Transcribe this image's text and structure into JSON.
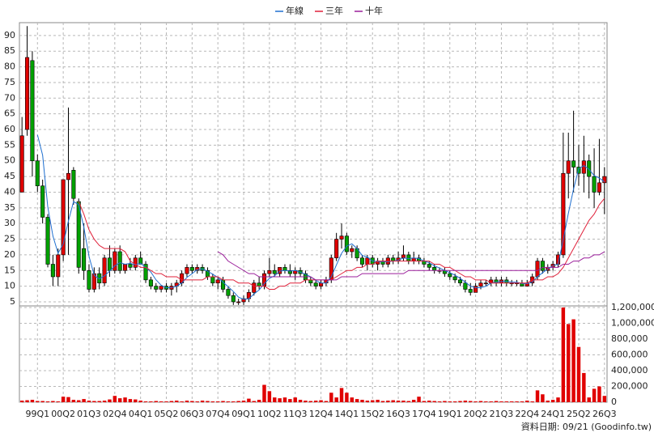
{
  "chart_data": {
    "type": "candlestick",
    "source": "資料日期: 09/21 (Goodinfo.tw)",
    "categories": [
      null,
      null,
      null,
      "99Q1",
      null,
      null,
      null,
      null,
      "00Q2",
      null,
      null,
      null,
      null,
      "01Q3",
      null,
      null,
      null,
      null,
      "02Q4",
      null,
      null,
      null,
      null,
      "04Q1",
      null,
      null,
      null,
      null,
      "05Q2",
      null,
      null,
      null,
      null,
      "06Q3",
      null,
      null,
      null,
      null,
      "07Q4",
      null,
      null,
      null,
      null,
      "09Q1",
      null,
      null,
      null,
      null,
      "10Q2",
      null,
      null,
      null,
      null,
      "11Q3",
      null,
      null,
      null,
      null,
      "12Q4",
      null,
      null,
      null,
      null,
      "14Q1",
      null,
      null,
      null,
      null,
      "15Q2",
      null,
      null,
      null,
      null,
      "16Q3",
      null,
      null,
      null,
      null,
      "17Q4",
      null,
      null,
      null,
      null,
      "19Q1",
      null,
      null,
      null,
      null,
      "20Q2",
      null,
      null,
      null,
      null,
      "21Q3",
      null,
      null,
      null,
      null,
      "22Q4",
      null,
      null,
      null,
      null,
      "24Q1",
      null,
      null,
      null,
      null,
      "25Q2",
      null,
      null,
      null,
      null,
      "26Q3"
    ],
    "ohlc": [
      [
        40,
        64,
        40,
        58
      ],
      [
        60,
        93,
        58,
        83
      ],
      [
        82,
        85,
        45,
        50
      ],
      [
        50,
        52,
        40,
        42
      ],
      [
        42,
        44,
        30,
        32
      ],
      [
        32,
        33,
        16,
        17
      ],
      [
        17,
        20,
        10,
        13
      ],
      [
        13,
        22,
        10,
        20
      ],
      [
        20,
        44,
        18,
        44
      ],
      [
        44,
        67,
        20,
        46
      ],
      [
        47,
        48,
        36,
        38
      ],
      [
        37,
        38,
        14,
        16
      ],
      [
        22,
        30,
        12,
        15
      ],
      [
        15,
        17,
        8,
        9
      ],
      [
        9,
        16,
        8,
        14
      ],
      [
        14,
        16,
        9,
        11
      ],
      [
        11,
        20,
        10,
        19
      ],
      [
        19,
        23,
        13,
        15
      ],
      [
        15,
        22,
        14,
        21
      ],
      [
        21,
        23,
        14,
        15
      ],
      [
        15,
        17,
        14,
        17
      ],
      [
        17,
        19,
        15,
        16
      ],
      [
        16,
        20,
        15,
        19
      ],
      [
        19,
        21,
        17,
        17
      ],
      [
        17,
        18,
        11,
        12
      ],
      [
        12,
        13,
        9,
        10
      ],
      [
        10,
        11,
        8,
        9
      ],
      [
        9,
        10,
        8,
        10
      ],
      [
        10,
        11,
        8,
        9
      ],
      [
        9,
        11,
        7,
        10
      ],
      [
        10,
        12,
        8,
        11
      ],
      [
        11,
        15,
        10,
        14
      ],
      [
        14,
        17,
        13,
        16
      ],
      [
        16,
        17,
        14,
        15
      ],
      [
        15,
        17,
        14,
        16
      ],
      [
        16,
        17,
        14,
        15
      ],
      [
        15,
        16,
        12,
        13
      ],
      [
        13,
        14,
        10,
        11
      ],
      [
        11,
        13,
        9,
        12
      ],
      [
        12,
        13,
        8,
        9
      ],
      [
        9,
        10,
        6,
        7
      ],
      [
        7,
        8,
        4,
        5
      ],
      [
        5,
        6,
        4,
        5
      ],
      [
        5,
        7,
        4,
        6
      ],
      [
        6,
        9,
        5,
        8
      ],
      [
        8,
        12,
        7,
        11
      ],
      [
        11,
        13,
        9,
        10
      ],
      [
        10,
        15,
        9,
        14
      ],
      [
        14,
        19,
        13,
        15
      ],
      [
        15,
        17,
        13,
        14
      ],
      [
        14,
        16,
        13,
        16
      ],
      [
        16,
        17,
        14,
        15
      ],
      [
        15,
        17,
        13,
        14
      ],
      [
        14,
        16,
        12,
        15
      ],
      [
        15,
        16,
        13,
        14
      ],
      [
        14,
        15,
        11,
        12
      ],
      [
        12,
        13,
        10,
        11
      ],
      [
        11,
        12,
        9,
        10
      ],
      [
        10,
        12,
        9,
        11
      ],
      [
        11,
        13,
        10,
        12
      ],
      [
        12,
        20,
        11,
        19
      ],
      [
        19,
        27,
        18,
        25
      ],
      [
        25,
        30,
        22,
        26
      ],
      [
        26,
        27,
        20,
        21
      ],
      [
        21,
        23,
        19,
        22
      ],
      [
        22,
        23,
        18,
        19
      ],
      [
        19,
        20,
        16,
        17
      ],
      [
        17,
        20,
        15,
        19
      ],
      [
        19,
        20,
        16,
        17
      ],
      [
        17,
        19,
        15,
        18
      ],
      [
        18,
        19,
        16,
        17
      ],
      [
        17,
        20,
        16,
        19
      ],
      [
        19,
        20,
        17,
        18
      ],
      [
        18,
        21,
        17,
        19
      ],
      [
        19,
        23,
        18,
        20
      ],
      [
        20,
        21,
        17,
        18
      ],
      [
        18,
        21,
        17,
        19
      ],
      [
        19,
        20,
        17,
        18
      ],
      [
        18,
        19,
        16,
        17
      ],
      [
        17,
        18,
        15,
        16
      ],
      [
        16,
        17,
        14,
        15
      ],
      [
        15,
        16,
        14,
        15
      ],
      [
        15,
        16,
        13,
        14
      ],
      [
        14,
        15,
        12,
        13
      ],
      [
        13,
        14,
        11,
        12
      ],
      [
        12,
        13,
        10,
        11
      ],
      [
        11,
        12,
        8,
        9
      ],
      [
        9,
        11,
        7,
        8
      ],
      [
        8,
        11,
        8,
        10
      ],
      [
        10,
        12,
        9,
        11
      ],
      [
        11,
        12,
        10,
        11
      ],
      [
        11,
        13,
        10,
        12
      ],
      [
        12,
        13,
        10,
        11
      ],
      [
        11,
        13,
        10,
        12
      ],
      [
        12,
        13,
        10,
        11
      ],
      [
        11,
        12,
        10,
        11
      ],
      [
        11,
        12,
        10,
        11
      ],
      [
        11,
        12,
        10,
        10
      ],
      [
        10,
        12,
        10,
        11
      ],
      [
        11,
        14,
        10,
        13
      ],
      [
        13,
        19,
        12,
        18
      ],
      [
        18,
        19,
        14,
        15
      ],
      [
        15,
        17,
        14,
        16
      ],
      [
        16,
        18,
        15,
        17
      ],
      [
        17,
        21,
        16,
        20
      ],
      [
        20,
        59,
        19,
        46
      ],
      [
        46,
        59,
        38,
        50
      ],
      [
        50,
        66,
        40,
        48
      ],
      [
        48,
        55,
        42,
        46
      ],
      [
        46,
        58,
        40,
        50
      ],
      [
        50,
        52,
        38,
        45
      ],
      [
        45,
        54,
        35,
        40
      ],
      [
        40,
        57,
        39,
        43
      ],
      [
        43,
        48,
        33,
        45
      ]
    ],
    "up_color": "#e00000",
    "down_color": "#00a000",
    "series": [
      {
        "name": "年線",
        "color": "#1f6fd0",
        "values": [
          null,
          null,
          null,
          58.3,
          51.8,
          35.3,
          26,
          20.5,
          23.5,
          30.8,
          37,
          36,
          28.8,
          19.5,
          13.5,
          12.3,
          13.3,
          14.8,
          16.5,
          17.5,
          17,
          17.3,
          16.8,
          17.3,
          16,
          14.5,
          12,
          10.3,
          9.5,
          9.5,
          10,
          11,
          12.8,
          14,
          15.3,
          15.5,
          14.8,
          13.8,
          12.8,
          11.3,
          9.8,
          8.3,
          6.5,
          5.8,
          6,
          7.5,
          8.8,
          10.8,
          12.5,
          13.3,
          14.8,
          15,
          14.8,
          15,
          14.5,
          13.8,
          13,
          11.8,
          11,
          11,
          13,
          16.8,
          20.5,
          22.8,
          23.5,
          22,
          19.8,
          19.3,
          18,
          17.8,
          17.8,
          17.8,
          18,
          18.3,
          19,
          18.8,
          19,
          18.8,
          18,
          17.5,
          16.5,
          15.8,
          15,
          14.3,
          13.5,
          12.5,
          11.3,
          10,
          9.5,
          9.5,
          10,
          11,
          11.3,
          11.5,
          11.5,
          11.3,
          11.3,
          10.8,
          10.8,
          11.3,
          13,
          14.3,
          15.5,
          16.5,
          17,
          24.8,
          33.3,
          41,
          47.5,
          48.5,
          47.3,
          45.3,
          44.5,
          43.3
        ]
      },
      {
        "name": "三年",
        "color": "#e0203a",
        "values": [
          null,
          null,
          null,
          null,
          null,
          null,
          null,
          null,
          null,
          null,
          null,
          37,
          33,
          28,
          25,
          23,
          22,
          22,
          22,
          22,
          21,
          18,
          17,
          16,
          16,
          15,
          14,
          14,
          13,
          13,
          13,
          12,
          12,
          12,
          12,
          12,
          13,
          13,
          13,
          12,
          12,
          12,
          11,
          11,
          11,
          10,
          10,
          10,
          9,
          9,
          10,
          10,
          11,
          11,
          11,
          12,
          12,
          12,
          12,
          12,
          12,
          13,
          14,
          15,
          15,
          16,
          16,
          17,
          17,
          18,
          18,
          18,
          18,
          18,
          18,
          18,
          18,
          18,
          18,
          18,
          17,
          17,
          16,
          16,
          15,
          14,
          13,
          13,
          12,
          12,
          12,
          11,
          11,
          11,
          11,
          11,
          11,
          11,
          11,
          12,
          12,
          12,
          13,
          13,
          14,
          16,
          19,
          22,
          25,
          28,
          31,
          33,
          36,
          38
        ]
      },
      {
        "name": "十年",
        "color": "#9b1f9b",
        "values": [
          null,
          null,
          null,
          null,
          null,
          null,
          null,
          null,
          null,
          null,
          null,
          null,
          null,
          null,
          null,
          null,
          null,
          null,
          null,
          null,
          null,
          null,
          null,
          null,
          null,
          null,
          null,
          null,
          null,
          null,
          null,
          null,
          null,
          null,
          null,
          null,
          null,
          null,
          21,
          20,
          18,
          17,
          16,
          15,
          14,
          14,
          13,
          13,
          13,
          13,
          13,
          13,
          13,
          13,
          13,
          13,
          13,
          12,
          12,
          12,
          12,
          12,
          13,
          13,
          13,
          13,
          14,
          14,
          14,
          14,
          14,
          14,
          14,
          14,
          14,
          15,
          15,
          15,
          15,
          15,
          15,
          15,
          15,
          15,
          15,
          15,
          15,
          15,
          15,
          15,
          15,
          15,
          15,
          15,
          15,
          15,
          15,
          15,
          15,
          15,
          15,
          16,
          16,
          16,
          16,
          17,
          17,
          18,
          18,
          19,
          19,
          20,
          20,
          21
        ]
      }
    ],
    "volume": {
      "color": "#e00000",
      "axis": "y2",
      "values": [
        20000,
        25000,
        30000,
        15000,
        15000,
        10000,
        15000,
        10000,
        70000,
        65000,
        30000,
        25000,
        40000,
        20000,
        15000,
        15000,
        20000,
        35000,
        80000,
        50000,
        60000,
        40000,
        35000,
        20000,
        10000,
        10000,
        15000,
        10000,
        10000,
        15000,
        20000,
        10000,
        20000,
        15000,
        10000,
        20000,
        15000,
        10000,
        10000,
        15000,
        10000,
        10000,
        15000,
        20000,
        45000,
        15000,
        30000,
        220000,
        140000,
        60000,
        50000,
        60000,
        40000,
        60000,
        30000,
        20000,
        15000,
        20000,
        25000,
        15000,
        120000,
        60000,
        180000,
        120000,
        60000,
        40000,
        30000,
        20000,
        25000,
        30000,
        15000,
        20000,
        25000,
        20000,
        20000,
        15000,
        30000,
        70000,
        15000,
        20000,
        15000,
        10000,
        15000,
        10000,
        10000,
        15000,
        20000,
        15000,
        10000,
        15000,
        10000,
        10000,
        15000,
        10000,
        10000,
        10000,
        10000,
        10000,
        20000,
        10000,
        150000,
        100000,
        20000,
        30000,
        60000,
        1200000,
        990000,
        1050000,
        700000,
        370000,
        60000,
        170000,
        200000,
        80000
      ]
    },
    "ylim": [
      3.7,
      94.1
    ],
    "yticks": [
      5,
      10,
      15,
      20,
      25,
      30,
      35,
      40,
      45,
      50,
      55,
      60,
      65,
      70,
      75,
      80,
      85,
      90
    ],
    "y2lim": [
      0,
      1220000
    ],
    "y2ticks": [
      0,
      {
        "value": 200000,
        "label": "200,000"
      },
      {
        "value": 400000,
        "label": "400,000"
      },
      {
        "value": 600000,
        "label": "600,000"
      },
      {
        "value": 800000,
        "label": "800,000"
      },
      {
        "value": 1000000,
        "label": "1,000,000"
      },
      {
        "value": 1200000,
        "label": "1,200,000"
      }
    ],
    "grid": true
  }
}
